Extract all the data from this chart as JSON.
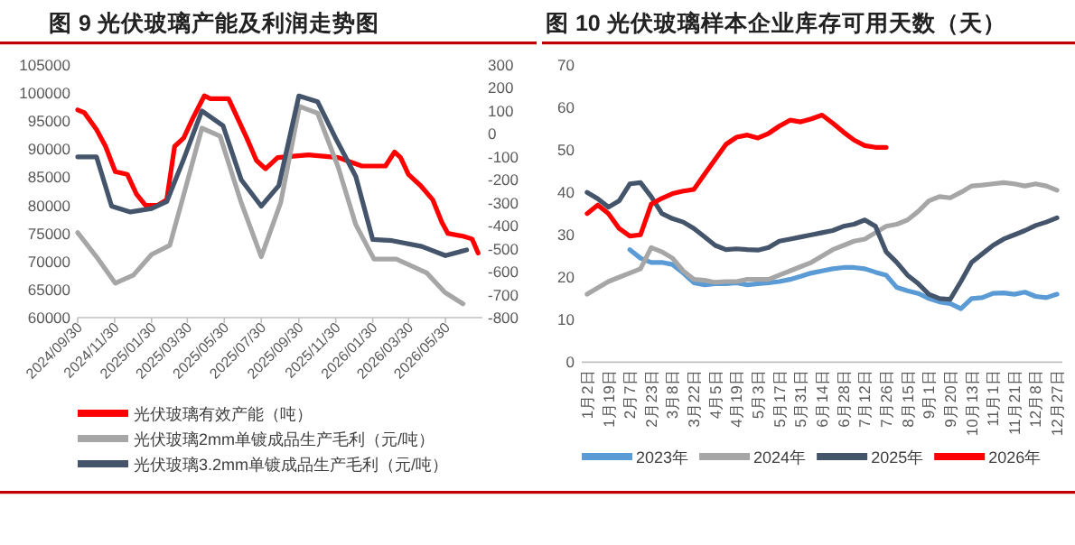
{
  "chart_data": [
    {
      "type": "line",
      "title": "图 9  光伏玻璃产能及利润走势图",
      "legend": "bottom",
      "xlim": [
        "2024-09-30",
        "2026-07-30"
      ],
      "xticks": [
        {
          "value": "2024-09-30",
          "label": "2024/09/30"
        },
        {
          "value": "2024-11-30",
          "label": "2024/11/30"
        },
        {
          "value": "2025-01-30",
          "label": "2025/01/30"
        },
        {
          "value": "2025-03-30",
          "label": "2025/03/30"
        },
        {
          "value": "2025-05-30",
          "label": "2025/05/30"
        },
        {
          "value": "2025-07-30",
          "label": "2025/07/30"
        },
        {
          "value": "2025-09-30",
          "label": "2025/09/30"
        },
        {
          "value": "2025-11-30",
          "label": "2025/11/30"
        },
        {
          "value": "2026-01-30",
          "label": "2026/01/30"
        },
        {
          "value": "2026-03-30",
          "label": "2026/03/30"
        },
        {
          "value": "2026-05-30",
          "label": "2026/05/30"
        }
      ],
      "ylim": [
        60000,
        105000
      ],
      "yticks": [
        60000,
        65000,
        70000,
        75000,
        80000,
        85000,
        90000,
        95000,
        100000,
        105000
      ],
      "y2lim": [
        -800,
        300
      ],
      "y2ticks": [
        -800,
        -700,
        -600,
        -500,
        -400,
        -300,
        -200,
        -100,
        0,
        100,
        200,
        300
      ],
      "series": [
        {
          "name": "光伏玻璃有效产能（吨）",
          "color": "#ff0000",
          "x": [
            "2024-09-30",
            "2024-10-11",
            "2024-10-31",
            "2024-11-15",
            "2024-12-01",
            "2024-12-21",
            "2025-01-05",
            "2025-01-20",
            "2025-02-09",
            "2025-02-24",
            "2025-03-09",
            "2025-03-24",
            "2025-04-08",
            "2025-04-27",
            "2025-05-07",
            "2025-06-06",
            "2025-06-21",
            "2025-07-06",
            "2025-07-22",
            "2025-08-06",
            "2025-08-26",
            "2025-10-16",
            "2025-12-04",
            "2026-01-12",
            "2026-02-20",
            "2026-03-07",
            "2026-03-17",
            "2026-03-30",
            "2026-04-19",
            "2026-05-09",
            "2026-05-24",
            "2026-06-03",
            "2026-06-28",
            "2026-07-13",
            "2026-07-23"
          ],
          "values": [
            97000,
            96500,
            93500,
            90500,
            86000,
            85500,
            82000,
            80000,
            80000,
            81000,
            90500,
            92000,
            95500,
            99500,
            99000,
            99000,
            95500,
            92000,
            88000,
            86500,
            88500,
            89000,
            88500,
            87000,
            87000,
            89500,
            88500,
            85500,
            83500,
            81000,
            77000,
            75000,
            74500,
            74000,
            71500
          ]
        },
        {
          "name": "光伏玻璃2mm单镀成品生产毛利（元/吨）",
          "color": "#a6a6a6",
          "axis": "y2",
          "x": [
            "2024-09-30",
            "2024-10-31",
            "2024-12-01",
            "2024-12-31",
            "2025-01-30",
            "2025-03-01",
            "2025-03-24",
            "2025-04-23",
            "2025-05-23",
            "2025-06-27",
            "2025-07-30",
            "2025-08-31",
            "2025-10-01",
            "2025-10-31",
            "2025-12-04",
            "2026-01-02",
            "2026-02-01",
            "2026-03-10",
            "2026-04-29",
            "2026-05-29",
            "2026-06-28"
          ],
          "values": [
            -430,
            -535,
            -650,
            -615,
            -525,
            -485,
            -265,
            25,
            -10,
            -300,
            -535,
            -300,
            120,
            90,
            -145,
            -395,
            -545,
            -545,
            -605,
            -690,
            -740
          ]
        },
        {
          "name": "光伏玻璃3.2mm单镀成品生产毛利（元/吨）",
          "color": "#44546a",
          "axis": "y2",
          "x": [
            "2024-09-30",
            "2024-10-31",
            "2024-11-25",
            "2024-12-26",
            "2025-01-30",
            "2025-02-24",
            "2025-03-24",
            "2025-04-23",
            "2025-05-28",
            "2025-06-27",
            "2025-07-30",
            "2025-08-28",
            "2025-09-30",
            "2025-10-31",
            "2025-11-29",
            "2026-01-02",
            "2026-01-30",
            "2026-03-03",
            "2026-04-21",
            "2026-05-30",
            "2026-07-04"
          ],
          "values": [
            -100,
            -100,
            -315,
            -340,
            -325,
            -295,
            -110,
            100,
            35,
            -200,
            -315,
            -225,
            165,
            140,
            -15,
            -185,
            -460,
            -465,
            -490,
            -530,
            -505
          ]
        }
      ]
    },
    {
      "type": "line",
      "title": "图 10  光伏玻璃样本企业库存可用天数（天）",
      "legend": "bottom",
      "categories": [
        "1月2日",
        null,
        "1月19日",
        null,
        "2月7日",
        null,
        "2月23日",
        null,
        "3月8日",
        null,
        "3月22日",
        null,
        "4月5日",
        null,
        "4月19日",
        null,
        "5月3日",
        null,
        "5月17日",
        null,
        "5月31日",
        null,
        "6月14日",
        null,
        "6月28日",
        null,
        "7月12日",
        null,
        "7月26日",
        null,
        "8月15日",
        null,
        "9月1日",
        null,
        "9月20日",
        null,
        "10月13日",
        null,
        "11月1日",
        null,
        "11月21日",
        null,
        "12月8日",
        null,
        "12月27日"
      ],
      "ylim": [
        0,
        70
      ],
      "yticks": [
        0,
        10,
        20,
        30,
        40,
        50,
        60,
        70
      ],
      "series": [
        {
          "name": "2023年",
          "color": "#5b9bd5",
          "values": [
            null,
            null,
            null,
            null,
            26.5,
            24.5,
            23.5,
            23.5,
            23,
            21,
            18.7,
            18.2,
            18.5,
            18.5,
            18.7,
            18.2,
            18.5,
            18.7,
            19,
            19.5,
            20.2,
            21,
            21.5,
            22,
            22.3,
            22.3,
            22,
            21.2,
            20.5,
            17.6,
            16.8,
            16.2,
            15,
            14.2,
            13.8,
            12.6,
            15,
            15.2,
            16.2,
            16.3,
            16,
            16.5,
            15.5,
            15.2,
            16
          ]
        },
        {
          "name": "2024年",
          "color": "#a6a6a6",
          "values": [
            16,
            17.5,
            19,
            20,
            21,
            22,
            27,
            26,
            24.5,
            21.5,
            19.5,
            19.3,
            18.8,
            19,
            19,
            19.5,
            19.5,
            19.5,
            20.5,
            21.5,
            22.5,
            23.5,
            25,
            26.5,
            27.5,
            28.5,
            29,
            30.5,
            32,
            32.5,
            33.5,
            35.5,
            38,
            39,
            38.7,
            40,
            41.5,
            41.7,
            42,
            42.3,
            42,
            41.5,
            42,
            41.5,
            40.5
          ]
        },
        {
          "name": "2025年",
          "color": "#44546a",
          "values": [
            40,
            38.5,
            36.5,
            38,
            42,
            42.3,
            39,
            35,
            33.8,
            33,
            31.5,
            29.5,
            27.5,
            26.5,
            26.7,
            26.5,
            26.4,
            27,
            28.5,
            29,
            29.5,
            30,
            30.5,
            31,
            32,
            32.5,
            33.5,
            32,
            26,
            23.5,
            20.5,
            18.5,
            16,
            15,
            14.8,
            19,
            23.5,
            25.5,
            27.5,
            29,
            30,
            31,
            32.2,
            33,
            34
          ]
        },
        {
          "name": "2026年",
          "color": "#ff0000",
          "values": [
            35,
            37,
            35,
            31.5,
            29.7,
            30,
            37.2,
            38.6,
            39.7,
            40.3,
            40.7,
            44.3,
            47.8,
            51.3,
            53,
            53.5,
            52.8,
            53.9,
            55.6,
            57,
            56.6,
            57.3,
            58.2,
            56.3,
            54.2,
            52.3,
            51,
            50.6,
            50.6,
            null,
            null,
            null,
            null,
            null,
            null,
            null,
            null,
            null,
            null,
            null,
            null,
            null,
            null,
            null,
            null
          ]
        }
      ]
    }
  ]
}
